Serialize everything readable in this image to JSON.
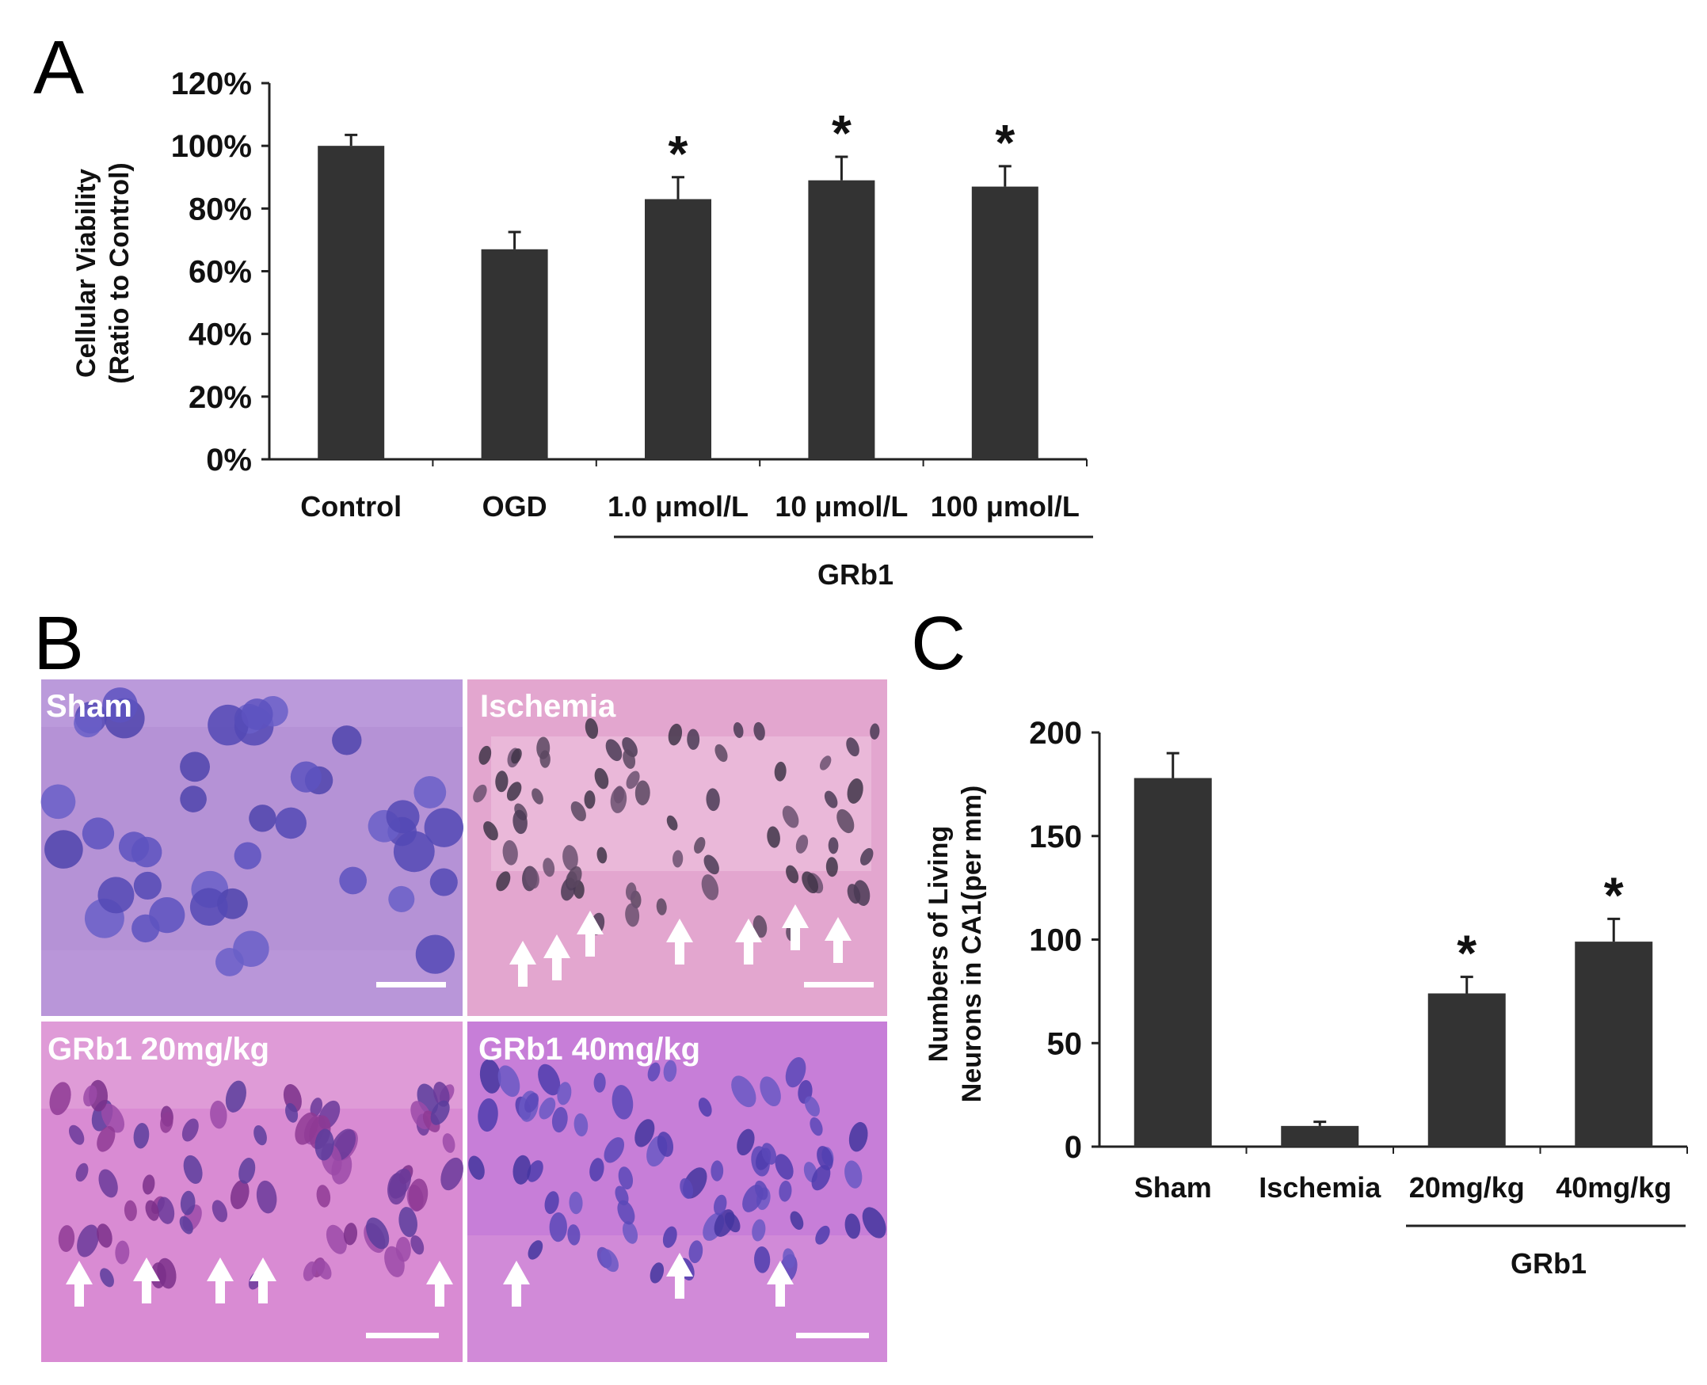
{
  "panels": {
    "a": "A",
    "b": "B",
    "c": "C"
  },
  "chart_data": [
    {
      "type": "bar",
      "panel": "A",
      "categories": [
        "Control",
        "OGD",
        "1.0 μmol/L",
        "10 μmol/L",
        "100 μmol/L"
      ],
      "values": [
        100,
        67,
        83,
        89,
        87
      ],
      "errors": [
        3.5,
        5.5,
        7,
        7.5,
        6.5
      ],
      "significance": [
        "",
        "",
        "*",
        "*",
        "*"
      ],
      "ylabel": [
        "Cellular Viability",
        "(Ratio to Control)"
      ],
      "yticks": [
        "0%",
        "20%",
        "40%",
        "60%",
        "80%",
        "100%",
        "120%"
      ],
      "ylim": [
        0,
        120
      ],
      "group_label": "GRb1",
      "group_start": 2,
      "group_end": 4,
      "bar_color": "#333333"
    },
    {
      "type": "bar",
      "panel": "C",
      "categories": [
        "Sham",
        "Ischemia",
        "20mg/kg",
        "40mg/kg"
      ],
      "values": [
        178,
        10,
        74,
        99
      ],
      "errors": [
        12,
        2,
        8,
        11
      ],
      "significance": [
        "",
        "",
        "*",
        "*"
      ],
      "ylabel": [
        "Numbers of Living",
        "Neurons in CA1(per mm)"
      ],
      "yticks": [
        "0",
        "50",
        "100",
        "150",
        "200"
      ],
      "ylim": [
        0,
        200
      ],
      "group_label": "GRb1",
      "group_start": 2,
      "group_end": 3,
      "bar_color": "#333333"
    }
  ],
  "micrographs": {
    "sham": "Sham",
    "ischemia": "Ischemia",
    "grb1_20": "GRb1 20mg/kg",
    "grb1_40": "GRb1 40mg/kg"
  }
}
